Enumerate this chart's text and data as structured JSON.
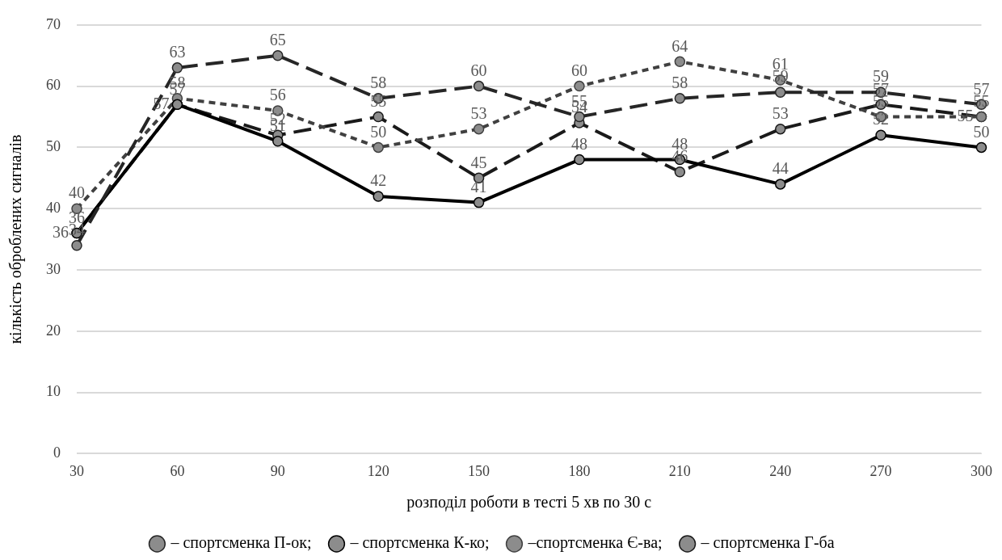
{
  "chart_data": {
    "type": "line",
    "xlabel": "розподіл роботи в тесті 5 хв по 30 с",
    "ylabel": "кількість оброблених сигналів",
    "categories": [
      "30",
      "60",
      "90",
      "120",
      "150",
      "180",
      "210",
      "240",
      "270",
      "300"
    ],
    "ylim": [
      0,
      70
    ],
    "yticks": [
      0,
      10,
      20,
      30,
      40,
      50,
      60,
      70
    ],
    "grid": "y",
    "legend": "bottom",
    "marker": "circle",
    "data_labels": true,
    "series": [
      {
        "name": "– спортсменка П-ок;",
        "color": "#262626",
        "line_style": "dashed",
        "values": [
          34,
          63,
          65,
          58,
          60,
          55,
          58,
          59,
          59,
          57
        ]
      },
      {
        "name": "– спортсменка К-ко;",
        "color": "#000000",
        "line_style": "solid",
        "values": [
          36,
          57,
          51,
          42,
          41,
          48,
          48,
          44,
          52,
          50
        ]
      },
      {
        "name": "–спортсменка Є-ва;",
        "color": "#404040",
        "line_style": "dotted",
        "values": [
          40,
          58,
          56,
          50,
          53,
          60,
          64,
          61,
          55,
          55
        ]
      },
      {
        "name": "– спортсменка Г-ба",
        "color": "#1a1a1a",
        "line_style": "dashed",
        "values": [
          36,
          57,
          52,
          55,
          45,
          54,
          46,
          53,
          57,
          55
        ]
      }
    ]
  }
}
